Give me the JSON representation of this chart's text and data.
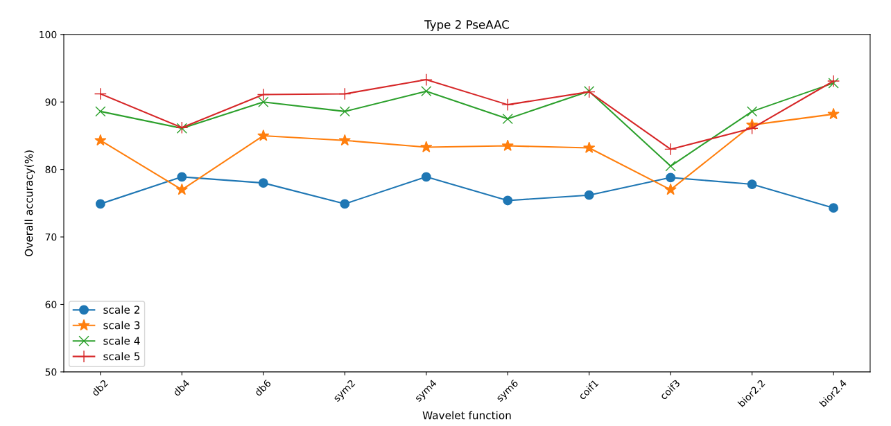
{
  "chart_data": {
    "type": "line",
    "title": "Type 2 PseAAC",
    "xlabel": "Wavelet function",
    "ylabel": "Overall accuracy(%)",
    "categories": [
      "db2",
      "db4",
      "db6",
      "sym2",
      "sym4",
      "sym6",
      "coif1",
      "coif3",
      "bior2.2",
      "bior2.4"
    ],
    "series": [
      {
        "name": "scale 2",
        "color": "#1f77b4",
        "marker": "circle",
        "values": [
          74.9,
          78.9,
          78.0,
          74.9,
          78.9,
          75.4,
          76.2,
          78.8,
          77.8,
          74.3
        ]
      },
      {
        "name": "scale 3",
        "color": "#ff7f0e",
        "marker": "star",
        "values": [
          84.3,
          77.0,
          85.0,
          84.3,
          83.3,
          83.5,
          83.2,
          77.0,
          86.6,
          88.2
        ]
      },
      {
        "name": "scale 4",
        "color": "#2ca02c",
        "marker": "cross",
        "values": [
          88.6,
          86.1,
          90.0,
          88.6,
          91.6,
          87.5,
          91.6,
          80.5,
          88.6,
          92.8
        ]
      },
      {
        "name": "scale 5",
        "color": "#d62728",
        "marker": "plus",
        "values": [
          91.2,
          86.2,
          91.1,
          91.2,
          93.3,
          89.6,
          91.5,
          83.0,
          86.1,
          93.1
        ]
      }
    ],
    "ylim": [
      50,
      100
    ],
    "yticks": [
      50,
      60,
      70,
      80,
      90,
      100
    ],
    "grid": false,
    "legend": "bottom left",
    "line_style": "solid"
  }
}
